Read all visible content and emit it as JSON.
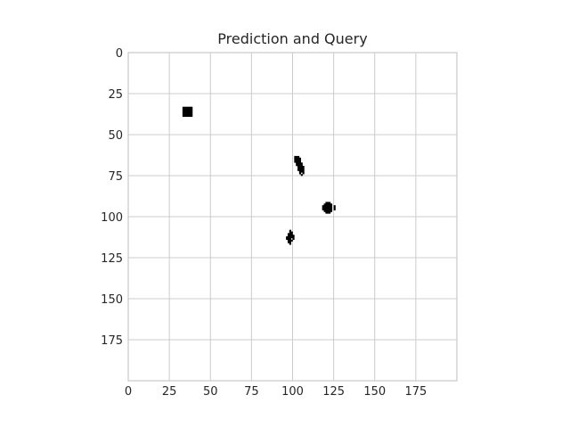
{
  "chart_data": {
    "type": "image",
    "title": "Prediction and Query",
    "xlim": [
      0,
      200
    ],
    "ylim": [
      200,
      0
    ],
    "xticks": [
      0,
      25,
      50,
      75,
      100,
      125,
      150,
      175
    ],
    "yticks": [
      0,
      25,
      50,
      75,
      100,
      125,
      150,
      175
    ],
    "grid": true,
    "background": "#ffffff",
    "mark_color": "#000000",
    "grid_color": "#cccccc",
    "pixels": [
      [
        33,
        33
      ],
      [
        34,
        33
      ],
      [
        35,
        33
      ],
      [
        36,
        33
      ],
      [
        37,
        33
      ],
      [
        38,
        33
      ],
      [
        33,
        34
      ],
      [
        34,
        34
      ],
      [
        35,
        34
      ],
      [
        36,
        34
      ],
      [
        37,
        34
      ],
      [
        38,
        34
      ],
      [
        33,
        35
      ],
      [
        34,
        35
      ],
      [
        35,
        35
      ],
      [
        36,
        35
      ],
      [
        37,
        35
      ],
      [
        38,
        35
      ],
      [
        33,
        36
      ],
      [
        34,
        36
      ],
      [
        35,
        36
      ],
      [
        36,
        36
      ],
      [
        37,
        36
      ],
      [
        38,
        36
      ],
      [
        33,
        37
      ],
      [
        34,
        37
      ],
      [
        35,
        37
      ],
      [
        36,
        37
      ],
      [
        37,
        37
      ],
      [
        38,
        37
      ],
      [
        33,
        38
      ],
      [
        34,
        38
      ],
      [
        35,
        38
      ],
      [
        36,
        38
      ],
      [
        37,
        38
      ],
      [
        38,
        38
      ],
      [
        101,
        63
      ],
      [
        102,
        63
      ],
      [
        103,
        63
      ],
      [
        101,
        64
      ],
      [
        102,
        64
      ],
      [
        103,
        64
      ],
      [
        104,
        64
      ],
      [
        101,
        65
      ],
      [
        102,
        65
      ],
      [
        103,
        65
      ],
      [
        104,
        65
      ],
      [
        101,
        66
      ],
      [
        102,
        66
      ],
      [
        103,
        66
      ],
      [
        104,
        66
      ],
      [
        102,
        67
      ],
      [
        103,
        67
      ],
      [
        104,
        67
      ],
      [
        105,
        67
      ],
      [
        102,
        68
      ],
      [
        103,
        68
      ],
      [
        104,
        68
      ],
      [
        105,
        68
      ],
      [
        103,
        69
      ],
      [
        104,
        69
      ],
      [
        105,
        69
      ],
      [
        106,
        69
      ],
      [
        103,
        70
      ],
      [
        104,
        70
      ],
      [
        105,
        70
      ],
      [
        106,
        70
      ],
      [
        103,
        71
      ],
      [
        104,
        71
      ],
      [
        105,
        71
      ],
      [
        106,
        71
      ],
      [
        104,
        72
      ],
      [
        105,
        72
      ],
      [
        106,
        72
      ],
      [
        104,
        73
      ],
      [
        106,
        73
      ],
      [
        105,
        74
      ],
      [
        120,
        91
      ],
      [
        121,
        91
      ],
      [
        122,
        91
      ],
      [
        119,
        92
      ],
      [
        120,
        92
      ],
      [
        121,
        92
      ],
      [
        122,
        92
      ],
      [
        123,
        92
      ],
      [
        118,
        93
      ],
      [
        119,
        93
      ],
      [
        120,
        93
      ],
      [
        121,
        93
      ],
      [
        122,
        93
      ],
      [
        123,
        93
      ],
      [
        125,
        93
      ],
      [
        118,
        94
      ],
      [
        119,
        94
      ],
      [
        120,
        94
      ],
      [
        121,
        94
      ],
      [
        122,
        94
      ],
      [
        123,
        94
      ],
      [
        125,
        94
      ],
      [
        118,
        95
      ],
      [
        119,
        95
      ],
      [
        120,
        95
      ],
      [
        121,
        95
      ],
      [
        122,
        95
      ],
      [
        123,
        95
      ],
      [
        125,
        95
      ],
      [
        119,
        96
      ],
      [
        120,
        96
      ],
      [
        121,
        96
      ],
      [
        122,
        96
      ],
      [
        123,
        96
      ],
      [
        120,
        97
      ],
      [
        121,
        97
      ],
      [
        122,
        97
      ],
      [
        98,
        108
      ],
      [
        98,
        109
      ],
      [
        99,
        109
      ],
      [
        97,
        110
      ],
      [
        98,
        110
      ],
      [
        99,
        110
      ],
      [
        97,
        111
      ],
      [
        98,
        111
      ],
      [
        99,
        111
      ],
      [
        100,
        111
      ],
      [
        96,
        112
      ],
      [
        97,
        112
      ],
      [
        98,
        112
      ],
      [
        99,
        112
      ],
      [
        100,
        112
      ],
      [
        96,
        113
      ],
      [
        97,
        113
      ],
      [
        98,
        113
      ],
      [
        100,
        113
      ],
      [
        97,
        114
      ],
      [
        98,
        114
      ],
      [
        99,
        114
      ],
      [
        97,
        115
      ],
      [
        98,
        115
      ],
      [
        98,
        116
      ]
    ]
  }
}
